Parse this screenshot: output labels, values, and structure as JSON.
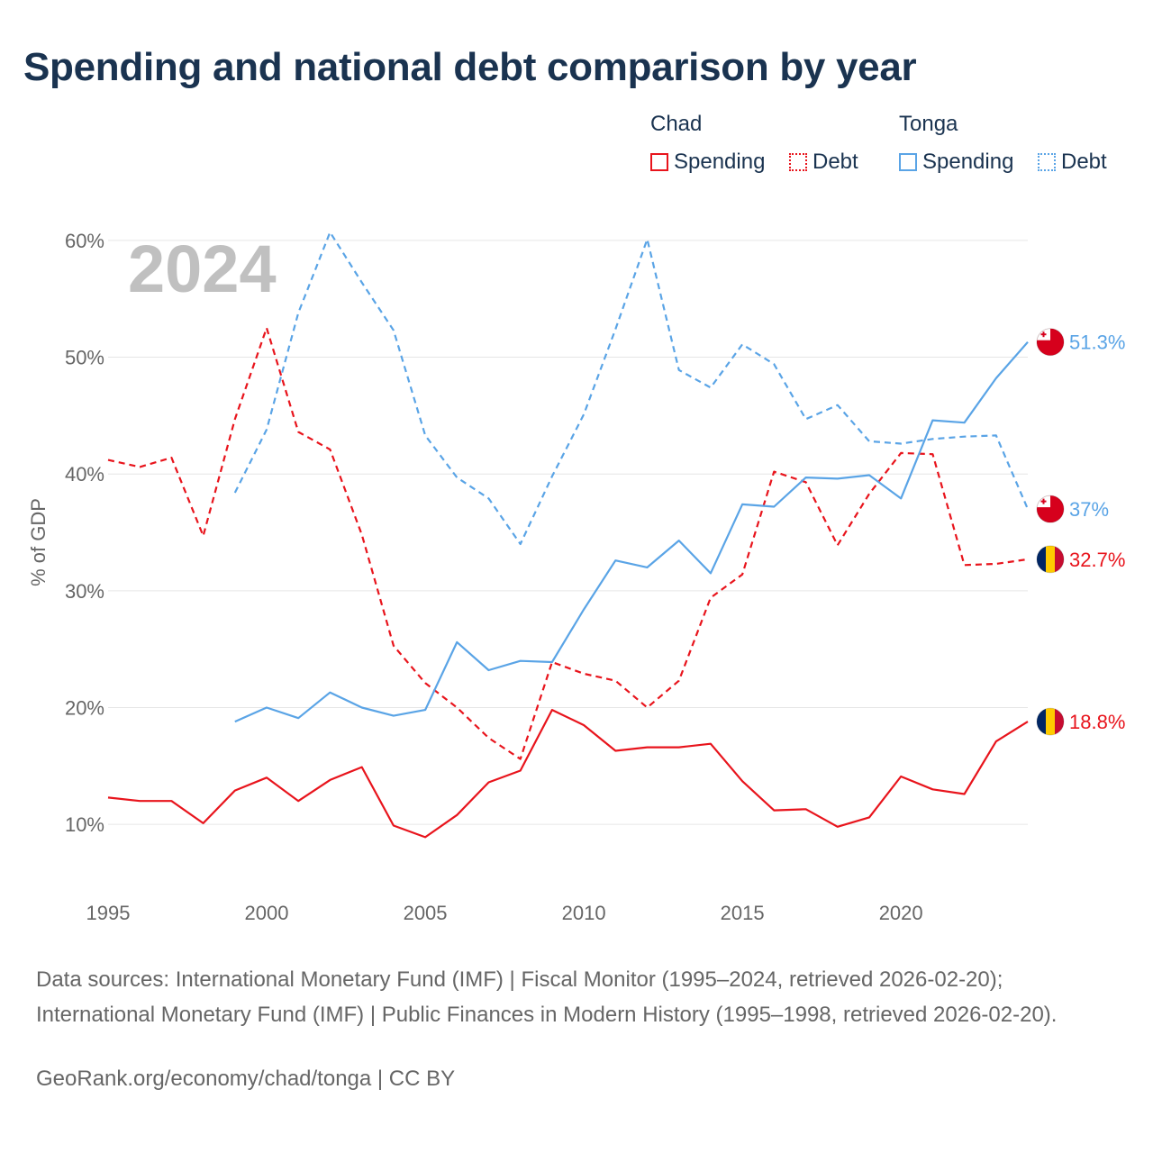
{
  "title": "Spending and national debt comparison by year",
  "legend": {
    "groups": [
      {
        "country": "Chad",
        "items": [
          {
            "label": "Spending",
            "style": "solid"
          },
          {
            "label": "Debt",
            "style": "dashed"
          }
        ]
      },
      {
        "country": "Tonga",
        "items": [
          {
            "label": "Spending",
            "style": "solid"
          },
          {
            "label": "Debt",
            "style": "dashed"
          }
        ]
      }
    ]
  },
  "colors": {
    "chad": "#e8141c",
    "tonga": "#5aa4e6",
    "grid": "#e6e6e6",
    "axis_text": "#666666",
    "year_watermark": "#c0c0c0"
  },
  "year_label": "2024",
  "source_text": "Data sources: International Monetary Fund (IMF) | Fiscal Monitor (1995–2024, retrieved 2026-02-20); International Monetary Fund (IMF) | Public Finances in Modern History (1995–1998, retrieved 2026-02-20).",
  "credit": "GeoRank.org/economy/chad/tonga | CC BY",
  "chart_data": {
    "type": "line",
    "title": "Spending and national debt comparison by year",
    "xlabel": "",
    "ylabel": "% of GDP",
    "xlim": [
      1995,
      2024
    ],
    "ylim": [
      5,
      63
    ],
    "xticks": [
      1995,
      2000,
      2005,
      2010,
      2015,
      2020
    ],
    "yticks": [
      10,
      20,
      30,
      40,
      50,
      60
    ],
    "ytick_labels": [
      "10%",
      "20%",
      "30%",
      "40%",
      "50%",
      "60%"
    ],
    "grid": true,
    "series": [
      {
        "name": "Chad Spending",
        "country": "Chad",
        "style": "solid",
        "x": [
          1995,
          1996,
          1997,
          1998,
          1999,
          2000,
          2001,
          2002,
          2003,
          2004,
          2005,
          2006,
          2007,
          2008,
          2009,
          2010,
          2011,
          2012,
          2013,
          2014,
          2015,
          2016,
          2017,
          2018,
          2019,
          2020,
          2021,
          2022,
          2023,
          2024
        ],
        "values": [
          12.3,
          12.0,
          12.0,
          10.1,
          12.9,
          14.0,
          12.0,
          13.8,
          14.9,
          9.9,
          8.9,
          10.8,
          13.6,
          14.6,
          19.8,
          18.5,
          16.3,
          16.6,
          16.6,
          16.9,
          13.7,
          11.2,
          11.3,
          9.8,
          10.6,
          14.1,
          13.0,
          12.6,
          17.1,
          18.8
        ],
        "end_label": "18.8%"
      },
      {
        "name": "Chad Debt",
        "country": "Chad",
        "style": "dashed",
        "x": [
          1995,
          1996,
          1997,
          1998,
          1999,
          2000,
          2001,
          2002,
          2003,
          2004,
          2005,
          2006,
          2007,
          2008,
          2009,
          2010,
          2011,
          2012,
          2013,
          2014,
          2015,
          2016,
          2017,
          2018,
          2019,
          2020,
          2021,
          2022,
          2023,
          2024
        ],
        "values": [
          41.2,
          40.6,
          41.4,
          34.7,
          44.7,
          52.5,
          43.6,
          42.1,
          34.8,
          25.3,
          22.1,
          20.0,
          17.4,
          15.6,
          23.9,
          22.9,
          22.3,
          20.0,
          22.3,
          29.4,
          31.4,
          40.2,
          39.3,
          33.9,
          38.3,
          41.8,
          41.7,
          32.2,
          32.3,
          32.7
        ],
        "end_label": "32.7%"
      },
      {
        "name": "Tonga Spending",
        "country": "Tonga",
        "style": "solid",
        "x": [
          1999,
          2000,
          2001,
          2002,
          2003,
          2004,
          2005,
          2006,
          2007,
          2008,
          2009,
          2010,
          2011,
          2012,
          2013,
          2014,
          2015,
          2016,
          2017,
          2018,
          2019,
          2020,
          2021,
          2022,
          2023,
          2024
        ],
        "values": [
          18.8,
          20.0,
          19.1,
          21.3,
          20.0,
          19.3,
          19.8,
          25.6,
          23.2,
          24.0,
          23.9,
          28.4,
          32.6,
          32.0,
          34.3,
          31.5,
          37.4,
          37.2,
          39.7,
          39.6,
          39.9,
          37.9,
          44.6,
          44.4,
          48.2,
          51.3
        ],
        "end_label": "51.3%"
      },
      {
        "name": "Tonga Debt",
        "country": "Tonga",
        "style": "dashed",
        "x": [
          1999,
          2000,
          2001,
          2002,
          2003,
          2004,
          2005,
          2006,
          2007,
          2008,
          2009,
          2010,
          2011,
          2012,
          2013,
          2014,
          2015,
          2016,
          2017,
          2018,
          2019,
          2020,
          2021,
          2022,
          2023,
          2024
        ],
        "values": [
          38.4,
          43.8,
          53.8,
          60.7,
          56.4,
          52.3,
          43.3,
          39.7,
          37.9,
          34.0,
          39.8,
          45.1,
          52.4,
          60.1,
          48.9,
          47.4,
          51.1,
          49.4,
          44.7,
          45.9,
          42.8,
          42.6,
          43.0,
          43.2,
          43.3,
          37.0
        ],
        "end_label": "37%"
      }
    ]
  }
}
